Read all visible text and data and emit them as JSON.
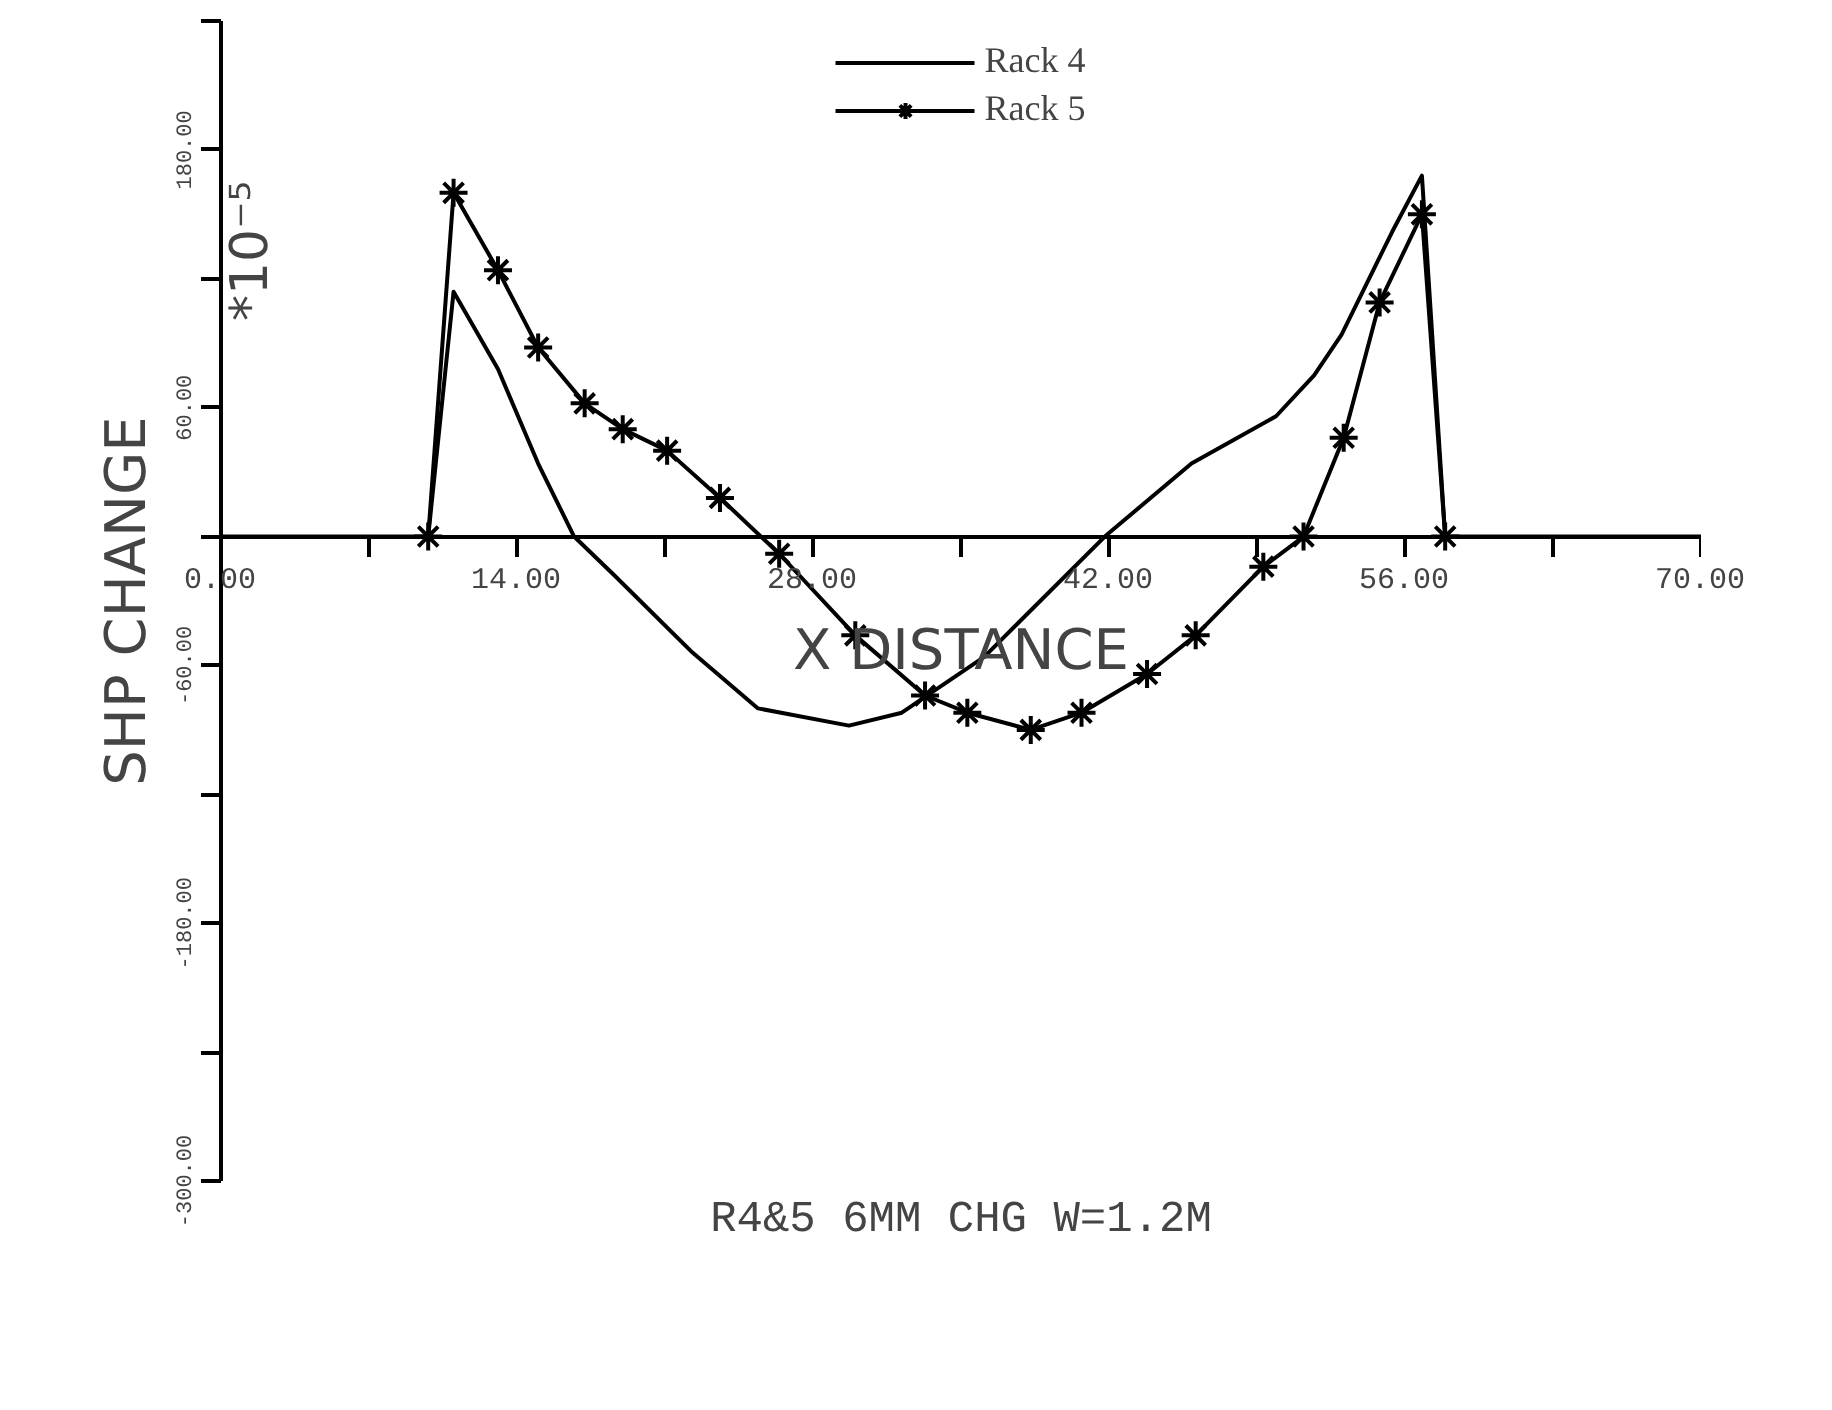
{
  "chart_data": {
    "type": "line",
    "title": "R4&5 6MM CHG W=1.2M",
    "xlabel": "X DISTANCE",
    "ylabel": "SHP CHANGE",
    "annotations": [
      "*10⁻⁵"
    ],
    "xlim": [
      0,
      70
    ],
    "ylim": [
      -300,
      240
    ],
    "xticks": [
      {
        "value": 0,
        "label": "0.00"
      },
      {
        "value": 7,
        "label": null
      },
      {
        "value": 14,
        "label": "14.00"
      },
      {
        "value": 21,
        "label": null
      },
      {
        "value": 28,
        "label": "28.00"
      },
      {
        "value": 35,
        "label": null
      },
      {
        "value": 42,
        "label": "42.00"
      },
      {
        "value": 49,
        "label": null
      },
      {
        "value": 56,
        "label": "56.00"
      },
      {
        "value": 63,
        "label": null
      },
      {
        "value": 70,
        "label": "70.00"
      }
    ],
    "yticks": [
      {
        "value": -300,
        "label": "-300.00"
      },
      {
        "value": -240,
        "label": null
      },
      {
        "value": -180,
        "label": "-180.00"
      },
      {
        "value": -120,
        "label": null
      },
      {
        "value": -60,
        "label": "-60.00"
      },
      {
        "value": 0,
        "label": null
      },
      {
        "value": 60,
        "label": "60.00"
      },
      {
        "value": 120,
        "label": null
      },
      {
        "value": 180,
        "label": "180.00"
      },
      {
        "value": 240,
        "label": null
      }
    ],
    "grid": false,
    "legend": "top",
    "series": [
      {
        "name": "Rack 4",
        "color": "#000000",
        "marker": "none",
        "x": [
          0,
          9.8,
          11,
          13.1,
          15,
          16.7,
          18.6,
          22.3,
          25.4,
          29.7,
          32.2,
          36.1,
          41.8,
          45.9,
          49.9,
          51.7,
          53,
          55.4,
          56.8,
          57.9,
          70
        ],
        "values": [
          0,
          0,
          114,
          78,
          34,
          0,
          -18,
          -54,
          -80,
          -88,
          -82,
          -56,
          0,
          34,
          56,
          75,
          94,
          142,
          168,
          0,
          0
        ]
      },
      {
        "name": "Rack 5",
        "color": "#000000",
        "marker": "cross",
        "x": [
          9.8,
          11,
          13.1,
          15,
          17.2,
          19,
          21.1,
          23.6,
          26.4,
          30,
          33.3,
          35.3,
          38.3,
          40.7,
          43.8,
          46.1,
          49.3,
          51.2,
          53.1,
          54.8,
          56.8,
          57.9
        ],
        "values": [
          0,
          160,
          124,
          88,
          62,
          50,
          40,
          18,
          -8,
          -46,
          -74,
          -82,
          -90,
          -82,
          -64,
          -46,
          -14,
          0,
          46,
          109,
          150,
          0
        ]
      }
    ]
  }
}
